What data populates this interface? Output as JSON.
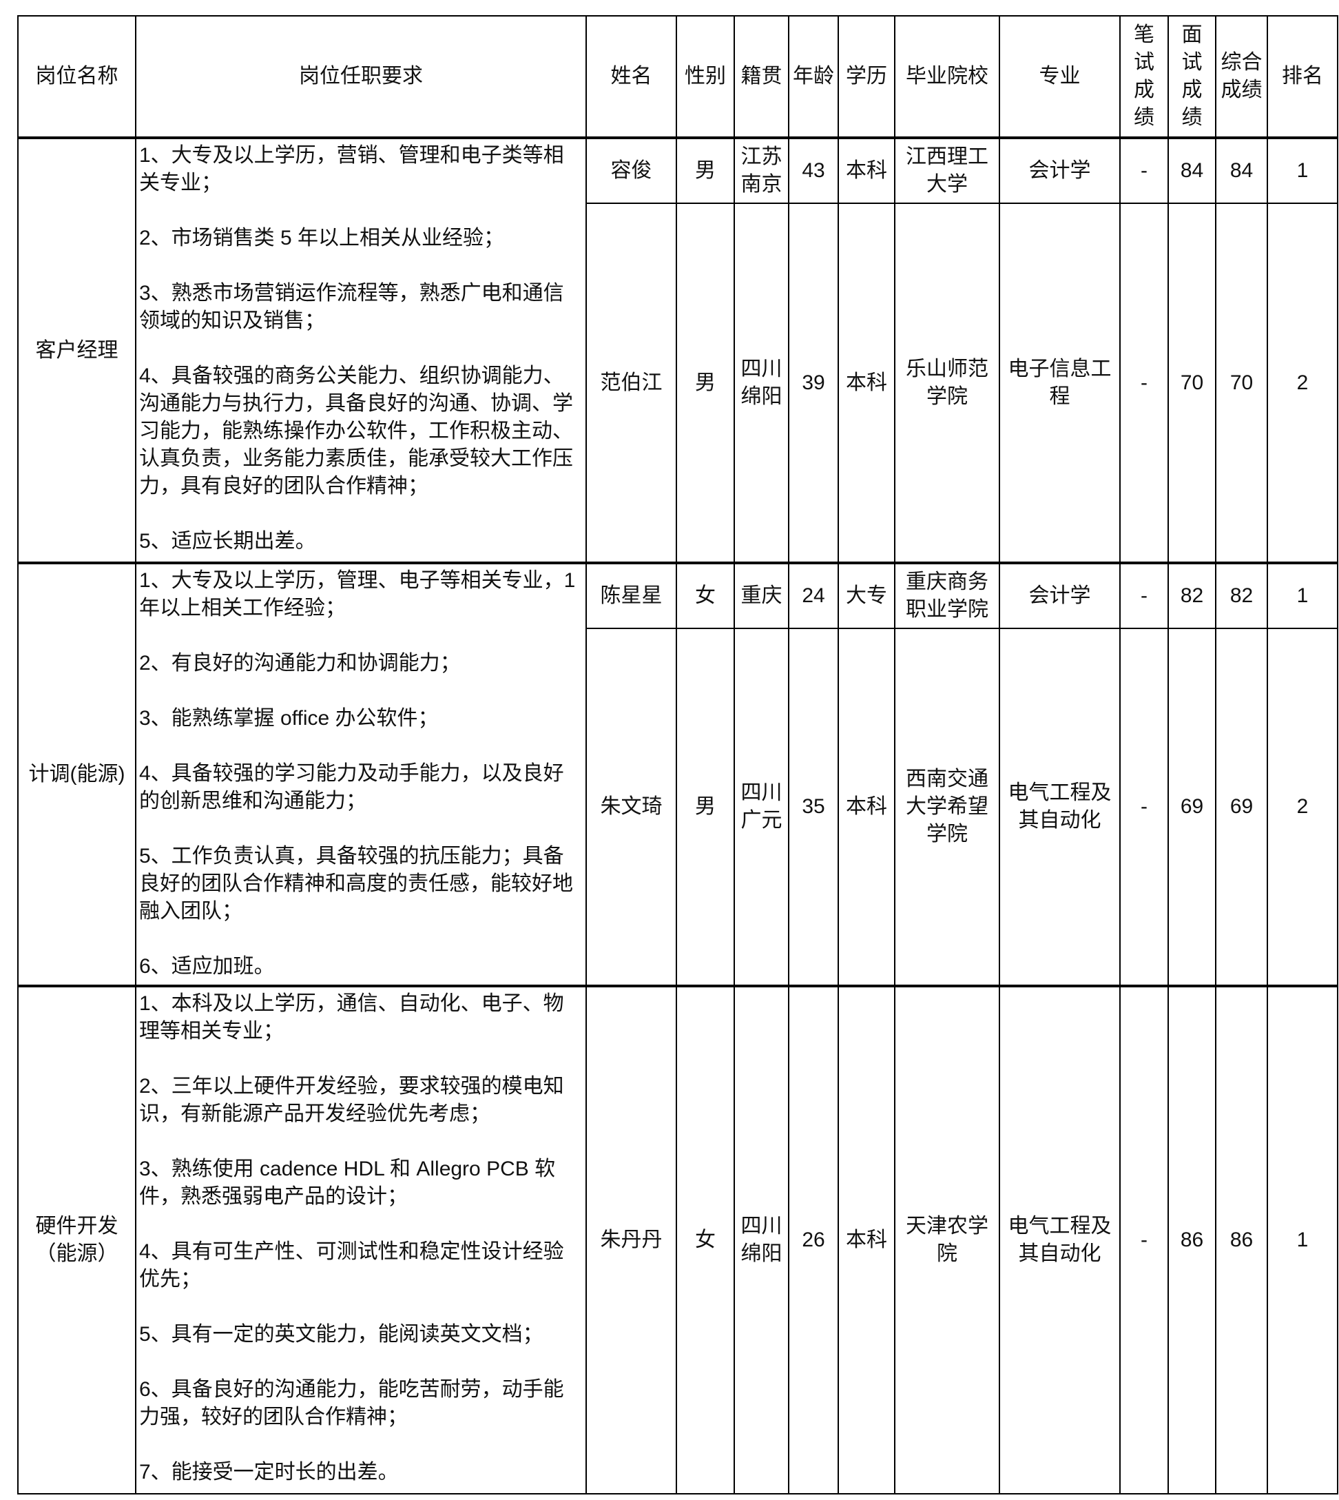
{
  "headers": {
    "position": "岗位名称",
    "requirements": "岗位任职要求",
    "name": "姓名",
    "gender": "性别",
    "hometown": "籍贯",
    "age": "年龄",
    "education": "学历",
    "school": "毕业院校",
    "major": "专业",
    "written_score": "笔试成绩",
    "interview_score": "面试成绩",
    "total_score": "综合成绩",
    "rank": "排名"
  },
  "groups": [
    {
      "position": "客户经理",
      "requirements": [
        "1、大专及以上学历，营销、管理和电子类等相关专业；",
        "2、市场销售类 5 年以上相关从业经验；",
        "3、熟悉市场营销运作流程等，熟悉广电和通信领域的知识及销售；",
        "4、具备较强的商务公关能力、组织协调能力、沟通能力与执行力，具备良好的沟通、协调、学习能力，能熟练操作办公软件，工作积极主动、认真负责，业务能力素质佳，能承受较大工作压力，具有良好的团队合作精神；",
        "5、适应长期出差。"
      ],
      "candidates": [
        {
          "name": "容俊",
          "gender": "男",
          "hometown": "江苏南京",
          "age": "43",
          "education": "本科",
          "school": "江西理工大学",
          "major": "会计学",
          "written_score": "-",
          "interview_score": "84",
          "total_score": "84",
          "rank": "1"
        },
        {
          "name": "范伯江",
          "gender": "男",
          "hometown": "四川绵阳",
          "age": "39",
          "education": "本科",
          "school": "乐山师范学院",
          "major": "电子信息工程",
          "written_score": "-",
          "interview_score": "70",
          "total_score": "70",
          "rank": "2"
        }
      ]
    },
    {
      "position": "计调(能源)",
      "requirements": [
        "1、大专及以上学历，管理、电子等相关专业，1 年以上相关工作经验；",
        "2、有良好的沟通能力和协调能力；",
        "3、能熟练掌握 office 办公软件；",
        "4、具备较强的学习能力及动手能力，以及良好的创新思维和沟通能力；",
        "5、工作负责认真，具备较强的抗压能力；具备良好的团队合作精神和高度的责任感，能较好地融入团队；",
        "6、适应加班。"
      ],
      "candidates": [
        {
          "name": "陈星星",
          "gender": "女",
          "hometown": "重庆",
          "age": "24",
          "education": "大专",
          "school": "重庆商务职业学院",
          "major": "会计学",
          "written_score": "-",
          "interview_score": "82",
          "total_score": "82",
          "rank": "1"
        },
        {
          "name": "朱文琦",
          "gender": "男",
          "hometown": "四川广元",
          "age": "35",
          "education": "本科",
          "school": "西南交通大学希望学院",
          "major": "电气工程及其自动化",
          "written_score": "-",
          "interview_score": "69",
          "total_score": "69",
          "rank": "2"
        }
      ]
    },
    {
      "position": "硬件开发（能源）",
      "requirements": [
        "1、本科及以上学历，通信、自动化、电子、物理等相关专业；",
        "2、三年以上硬件开发经验，要求较强的模电知识，有新能源产品开发经验优先考虑；",
        "3、熟练使用 cadence HDL 和 Allegro PCB 软件，熟悉强弱电产品的设计；",
        "4、具有可生产性、可测试性和稳定性设计经验优先；",
        "5、具有一定的英文能力，能阅读英文文档；",
        "6、具备良好的沟通能力，能吃苦耐劳，动手能力强，较好的团队合作精神；",
        "7、能接受一定时长的出差。"
      ],
      "candidates": [
        {
          "name": "朱丹丹",
          "gender": "女",
          "hometown": "四川绵阳",
          "age": "26",
          "education": "本科",
          "school": "天津农学院",
          "major": "电气工程及其自动化",
          "written_score": "-",
          "interview_score": "86",
          "total_score": "86",
          "rank": "1"
        }
      ]
    }
  ]
}
